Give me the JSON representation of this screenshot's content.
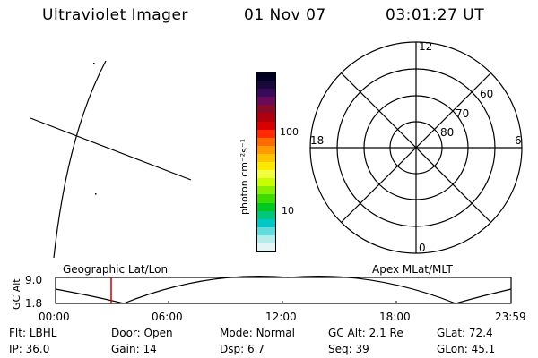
{
  "header": {
    "instrument": "Ultraviolet Imager",
    "date": "01 Nov 07",
    "time": "03:01:27 UT"
  },
  "colorbar": {
    "unit_label": "photon cm⁻²s⁻¹",
    "ticks": [
      "100",
      "10"
    ],
    "colors": [
      "#000022",
      "#1a0a3c",
      "#3a0a5a",
      "#6a0a5a",
      "#8a0a2a",
      "#b00010",
      "#d80000",
      "#ff2a00",
      "#ff6a00",
      "#ff9a00",
      "#ffc400",
      "#ffe800",
      "#f2ff40",
      "#c8ff00",
      "#86f000",
      "#3cdc00",
      "#00c820",
      "#00c878",
      "#00c8c8",
      "#60dcdc",
      "#b4ecec",
      "#e2f4f4"
    ]
  },
  "polar_plot": {
    "mlt_labels": {
      "top": "12",
      "left": "18",
      "right": "6",
      "bottom": "0"
    },
    "lat_labels": [
      "60",
      "70",
      "80"
    ]
  },
  "timeline": {
    "y_axis_label": "GC Alt",
    "y_ticks": [
      "9.0",
      "1.8"
    ],
    "left_title": "Geographic Lat/Lon",
    "right_title": "Apex MLat/MLT",
    "x_ticks": [
      "00:00",
      "06:00",
      "12:00",
      "18:00",
      "23:59"
    ],
    "marker_color": "#cc0000"
  },
  "info_rows": [
    [
      {
        "key": "Flt:",
        "value": "LBHL"
      },
      {
        "key": "Door:",
        "value": "Open"
      },
      {
        "key": "Mode:",
        "value": "Normal"
      },
      {
        "key": "GC Alt:",
        "value": "2.1 Re"
      },
      {
        "key": "GLat:",
        "value": "72.4"
      }
    ],
    [
      {
        "key": "IP:",
        "value": "36.0"
      },
      {
        "key": "Gain:",
        "value": "14"
      },
      {
        "key": "Dsp:",
        "value": "6.7"
      },
      {
        "key": "Seq:",
        "value": "39"
      },
      {
        "key": "GLon:",
        "value": "45.1"
      }
    ]
  ]
}
